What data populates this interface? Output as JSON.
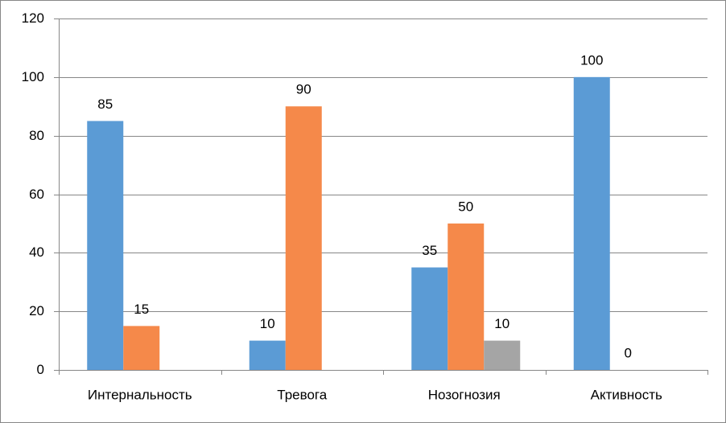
{
  "chart_data": {
    "type": "bar",
    "categories": [
      "Интернальность",
      "Тревога",
      "Нозогнозия",
      "Активность"
    ],
    "series": [
      {
        "color": "#5b9bd5",
        "values": [
          85,
          10,
          35,
          100
        ]
      },
      {
        "color": "#f5894a",
        "values": [
          15,
          90,
          50,
          0
        ]
      },
      {
        "color": "#a5a5a5",
        "values": [
          null,
          null,
          10,
          null
        ]
      }
    ],
    "ylim": [
      0,
      120
    ],
    "yticks": [
      0,
      20,
      40,
      60,
      80,
      100,
      120
    ],
    "grid": true,
    "data_labels": true
  }
}
